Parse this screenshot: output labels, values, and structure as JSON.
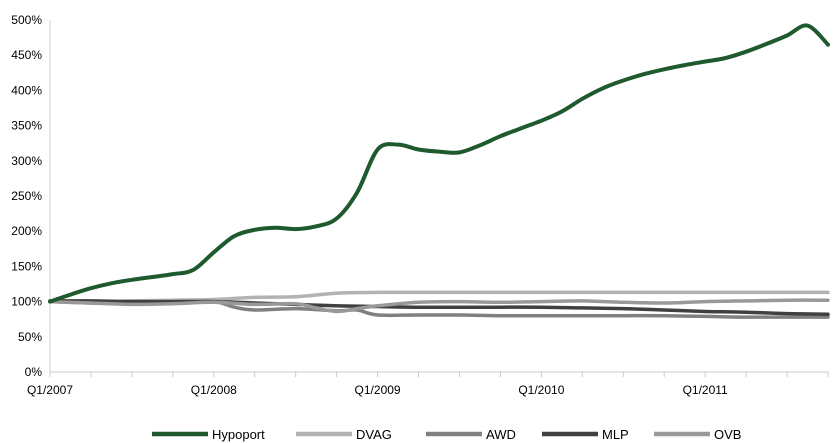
{
  "chart_data": {
    "type": "line",
    "title": "",
    "xlabel": "",
    "ylabel": "",
    "ylim": [
      0,
      500
    ],
    "ytick_values": [
      0,
      50,
      100,
      150,
      200,
      250,
      300,
      350,
      400,
      450,
      500
    ],
    "ytick_labels": [
      "0%",
      "50%",
      "100%",
      "150%",
      "200%",
      "250%",
      "300%",
      "350%",
      "400%",
      "450%",
      "500%"
    ],
    "xlim": [
      0,
      19
    ],
    "xtick_positions": [
      0,
      4,
      8,
      12,
      16
    ],
    "xtick_labels": [
      "Q1/2007",
      "Q1/2008",
      "Q1/2009",
      "Q1/2010",
      "Q1/2011"
    ],
    "grid": false,
    "legend_position": "bottom",
    "series": [
      {
        "name": "Hypoport",
        "color": "#1e5a2e",
        "x": [
          0,
          0.5,
          1,
          1.5,
          2,
          2.5,
          3,
          3.5,
          4,
          4.5,
          5,
          5.5,
          6,
          6.5,
          7,
          7.5,
          8,
          8.5,
          9,
          9.5,
          10,
          10.5,
          11,
          11.5,
          12,
          12.5,
          13,
          13.5,
          14,
          14.5,
          15,
          15.5,
          16,
          16.5,
          17,
          17.5,
          18,
          18.5,
          19
        ],
        "y": [
          100,
          110,
          119,
          126,
          131,
          135,
          139,
          145,
          170,
          193,
          202,
          205,
          203,
          207,
          218,
          255,
          316,
          323,
          316,
          313,
          312,
          322,
          335,
          346,
          357,
          370,
          388,
          403,
          414,
          423,
          430,
          436,
          441,
          446,
          455,
          466,
          478,
          492,
          465
        ]
      },
      {
        "name": "DVAG",
        "color": "#b2b2b2",
        "x": [
          0,
          1,
          2,
          3,
          4,
          5,
          6,
          7,
          8,
          9,
          10,
          11,
          12,
          13,
          14,
          15,
          16,
          17,
          18,
          19
        ],
        "y": [
          100,
          100,
          101,
          102,
          103,
          106,
          107,
          112,
          113,
          113,
          113,
          113,
          113,
          113,
          113,
          113,
          113,
          113,
          113,
          113
        ]
      },
      {
        "name": "AWD",
        "color": "#808080",
        "x": [
          0,
          1,
          2,
          3,
          4,
          4.5,
          5,
          6,
          7,
          7.5,
          8,
          9,
          10,
          11,
          12,
          13,
          14,
          15,
          16,
          17,
          18,
          19
        ],
        "y": [
          100,
          98,
          97,
          98,
          100,
          92,
          88,
          90,
          87,
          88,
          81,
          81,
          81,
          80,
          80,
          80,
          80,
          80,
          79,
          78,
          78,
          78
        ]
      },
      {
        "name": "MLP",
        "color": "#404040",
        "x": [
          0,
          1,
          2,
          3,
          4,
          5,
          6,
          7,
          8,
          9,
          10,
          11,
          12,
          13,
          14,
          15,
          16,
          17,
          18,
          19
        ],
        "y": [
          101,
          101,
          100,
          100,
          100,
          98,
          96,
          94,
          93,
          92,
          92,
          92,
          92,
          91,
          90,
          88,
          86,
          85,
          83,
          82
        ]
      },
      {
        "name": "OVB",
        "color": "#999999",
        "x": [
          0,
          1,
          2,
          3,
          4,
          5,
          6,
          6.5,
          7,
          7.5,
          8,
          9,
          10,
          11,
          12,
          13,
          14,
          15,
          16,
          17,
          18,
          19
        ],
        "y": [
          100,
          98,
          96,
          97,
          99,
          96,
          97,
          91,
          86,
          90,
          94,
          99,
          100,
          99,
          100,
          101,
          99,
          98,
          100,
          101,
          102,
          102
        ]
      }
    ]
  }
}
